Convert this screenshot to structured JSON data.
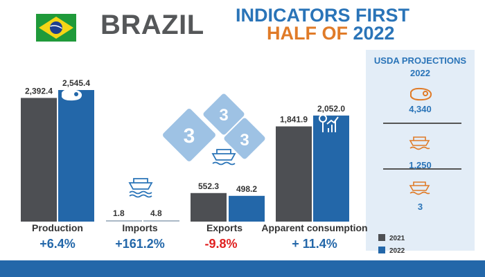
{
  "header": {
    "country": "BRAZIL",
    "title_line1": "INDICATORS FIRST",
    "title_line2_a": "HALF OF",
    "title_line2_b": "2022"
  },
  "colors": {
    "y2021": "#4d4f53",
    "y2022": "#2367a9",
    "accent_orange": "#e07b28",
    "accent_blue": "#2a74b8",
    "negative": "#e02020",
    "positive": "#2367a9"
  },
  "chart_data": {
    "type": "bar",
    "categories": [
      "Production",
      "Imports",
      "Exports",
      "Apparent consumption"
    ],
    "series": [
      {
        "name": "2021",
        "values": [
          2392.4,
          1.8,
          552.3,
          1841.9
        ],
        "labels": [
          "2,392.4",
          "1.8",
          "552.3",
          "1,841.9"
        ]
      },
      {
        "name": "2022",
        "values": [
          2545.4,
          4.8,
          498.2,
          2052.0
        ],
        "labels": [
          "2,545.4",
          "4.8",
          "498.2",
          "2,052.0"
        ]
      }
    ],
    "changes": [
      "+6.4%",
      "+161.2%",
      "-9.8%",
      "+ 11.4%"
    ],
    "legend": [
      "2021",
      "2022"
    ],
    "legend_position": "bottom-right"
  },
  "projections": {
    "title": "USDA PROJECTIONS 2022",
    "items": [
      {
        "icon": "meat-icon",
        "value": "4,340"
      },
      {
        "icon": "ship-icon",
        "value": "1,250"
      },
      {
        "icon": "ship-icon",
        "value": "3"
      }
    ]
  },
  "badges": [
    "3",
    "3",
    "3"
  ]
}
